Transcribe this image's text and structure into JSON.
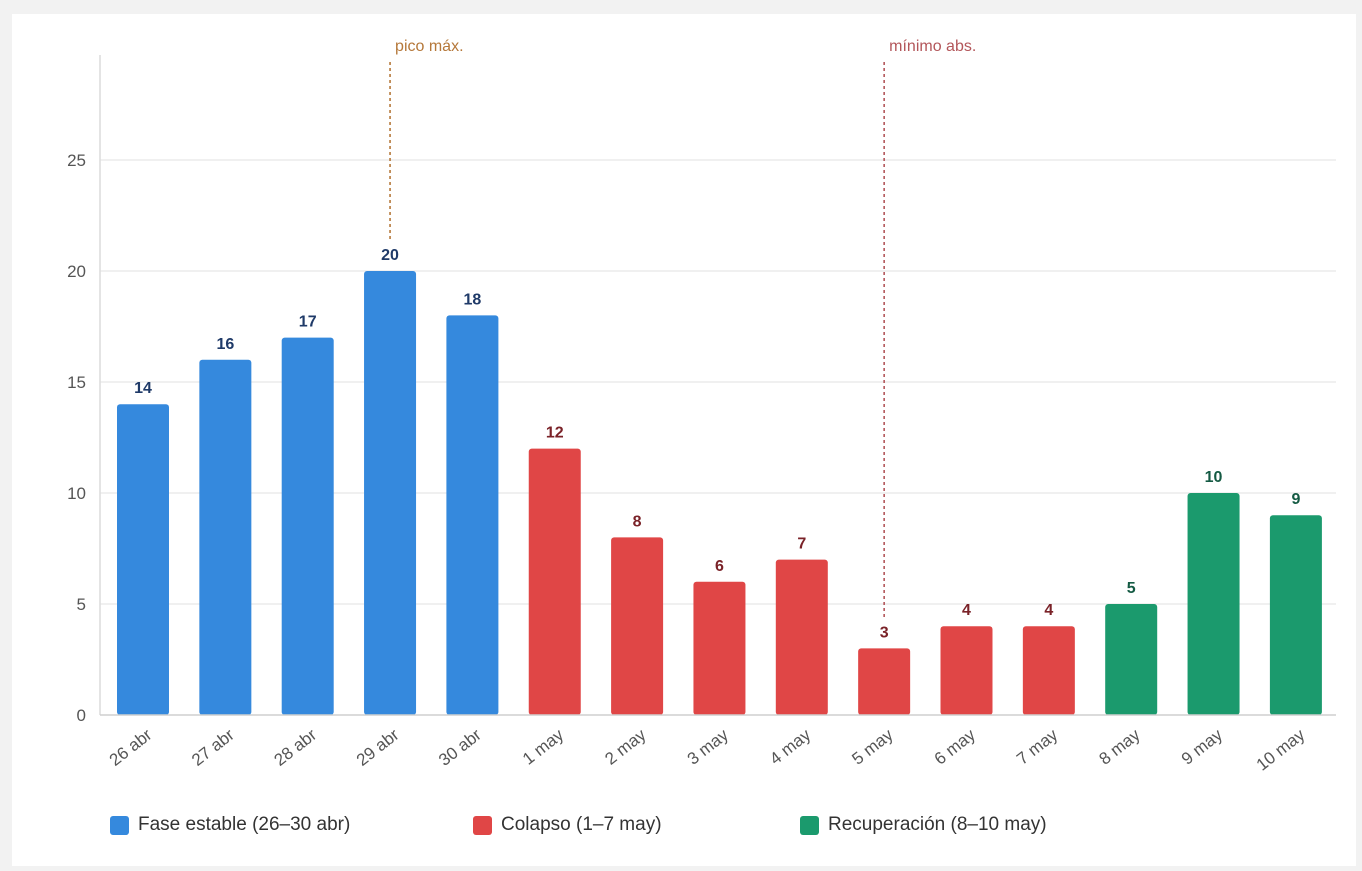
{
  "chart_data": {
    "type": "bar",
    "categories": [
      "26 abr",
      "27 abr",
      "28 abr",
      "29 abr",
      "30 abr",
      "1 may",
      "2 may",
      "3 may",
      "4 may",
      "5 may",
      "6 may",
      "7 may",
      "8 may",
      "9 may",
      "10 may"
    ],
    "values": [
      14,
      16,
      17,
      20,
      18,
      12,
      8,
      6,
      7,
      3,
      4,
      4,
      5,
      10,
      9
    ],
    "groups": [
      {
        "name": "Fase estable (26–30 abr)",
        "color": "#3589dd",
        "label_color": "#1f3a68",
        "start": 0,
        "end": 4
      },
      {
        "name": "Colapso (1–7 may)",
        "color": "#e04646",
        "label_color": "#7a2228",
        "start": 5,
        "end": 11
      },
      {
        "name": "Recuperación (8–10 may)",
        "color": "#1b9a6d",
        "label_color": "#145a43",
        "start": 12,
        "end": 14
      }
    ],
    "yticks": [
      0,
      5,
      10,
      15,
      20,
      25
    ],
    "ylim": [
      0,
      29
    ],
    "grid": true,
    "annotations": [
      {
        "text": "pico máx.",
        "category_index": 3,
        "color": "#b5783a"
      },
      {
        "text": "mínimo abs.",
        "category_index": 9,
        "color": "#b3565a"
      }
    ],
    "title": "",
    "xlabel": "",
    "ylabel": "",
    "legend_position": "bottom"
  }
}
